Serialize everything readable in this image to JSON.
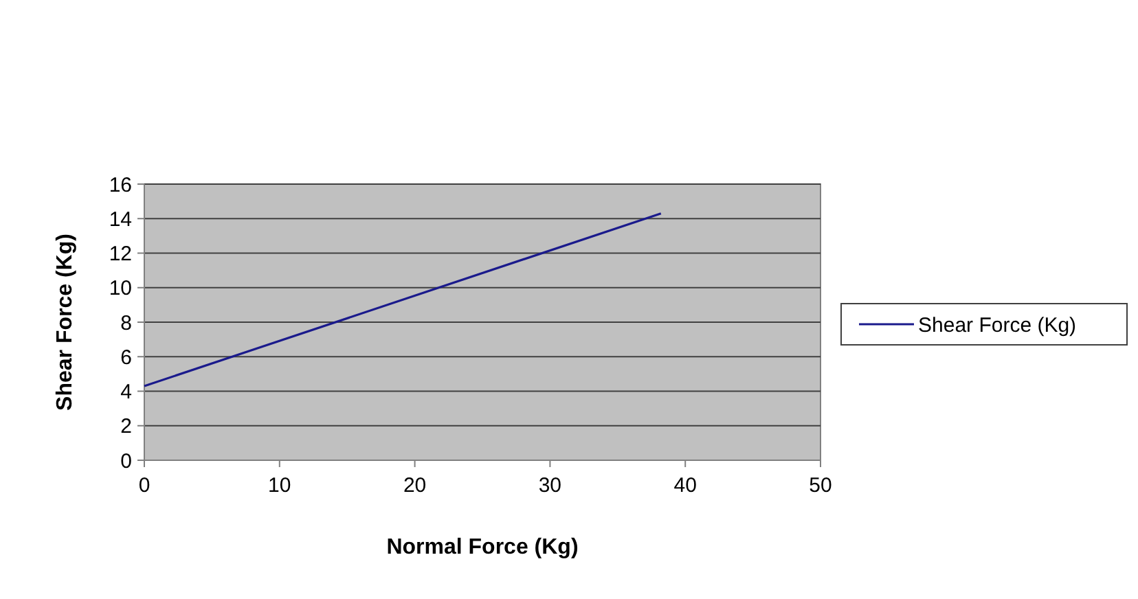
{
  "chart_data": {
    "type": "line",
    "xlabel": "Normal Force (Kg)",
    "ylabel": "Shear Force (Kg)",
    "series": [
      {
        "name": "Shear Force (Kg)",
        "color": "#1a1a8c",
        "x": [
          0,
          38.2
        ],
        "values": [
          4.3,
          14.3
        ]
      }
    ],
    "xlim": [
      0,
      50
    ],
    "xticks": [
      0,
      10,
      20,
      30,
      40,
      50
    ],
    "ylim": [
      0,
      16
    ],
    "yticks": [
      0,
      2,
      4,
      6,
      8,
      10,
      12,
      14,
      16
    ],
    "grid": "y",
    "legend": "right",
    "marker": "none",
    "line_style": "solid"
  }
}
